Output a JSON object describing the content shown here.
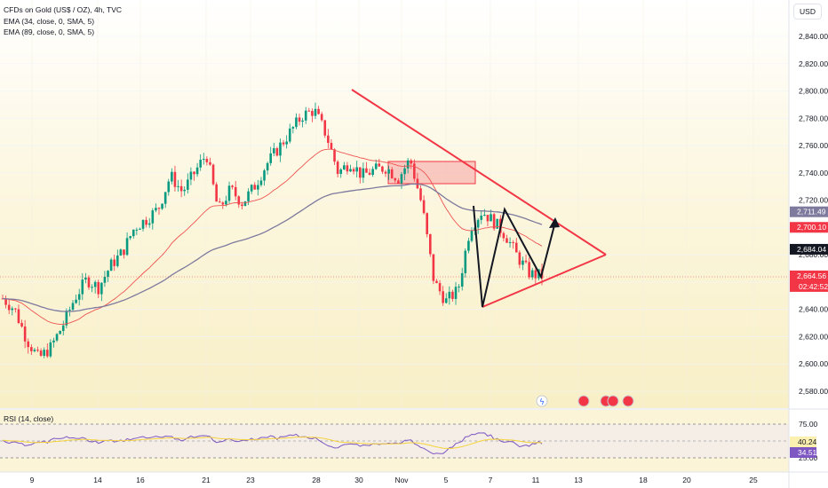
{
  "legend": {
    "symbol": "CFDs on Gold (US$ / OZ), 4h, TVC",
    "ema1": "EMA (34, close, 0, SMA, 5)",
    "ema2": "EMA (89, close, 0, SMA, 5)"
  },
  "currency_button": "USD",
  "rsi": {
    "label": "RSI (14, close)",
    "ticks": [
      "75.00",
      "25.00"
    ],
    "value_labels": [
      "40.24",
      "34.51"
    ]
  },
  "colors": {
    "up": "#089981",
    "down": "#f23645",
    "ema34": "#ef5350",
    "ema89": "#7e7a9e",
    "trend": "#f23645",
    "zone": "#f7a8a8",
    "rsi": "#7e57c2",
    "rsi_ma": "#f5d33b"
  },
  "chart_data": {
    "type": "candlestick",
    "y_ticks": [
      2580,
      2600,
      2620,
      2640,
      2660,
      2680,
      2700,
      2720,
      2740,
      2760,
      2780,
      2800,
      2820,
      2840
    ],
    "y_tick_labels": [
      "2,580.00",
      "2,600.00",
      "2,620.00",
      "2,640.00",
      "2,660.00",
      "2,680.00",
      "2,700.00",
      "2,720.00",
      "2,740.00",
      "2,760.00",
      "2,780.00",
      "2,800.00",
      "2,820.00",
      "2,840.00"
    ],
    "x_tick_labels": [
      "9",
      "14",
      "16",
      "21",
      "23",
      "28",
      "30",
      "Nov",
      "5",
      "7",
      "11",
      "13",
      "18",
      "20",
      "25"
    ],
    "ylim": [
      2564,
      2858
    ],
    "price_labels": [
      {
        "text": "2,711.49",
        "value": 2711.49,
        "color": "#7e7a9e"
      },
      {
        "text": "2,700.10",
        "value": 2700.1,
        "color": "#f23645"
      },
      {
        "text": "2,684.04",
        "value": 2684.04,
        "color": "#131722"
      },
      {
        "text": "2,664.56",
        "value": 2664.56,
        "color": "#f23645"
      }
    ],
    "countdown": "02:42:52",
    "close_path": [
      2648,
      2640,
      2618,
      2604,
      2612,
      2628,
      2648,
      2662,
      2656,
      2672,
      2682,
      2700,
      2706,
      2714,
      2738,
      2726,
      2740,
      2754,
      2712,
      2728,
      2718,
      2730,
      2746,
      2758,
      2770,
      2782,
      2786,
      2768,
      2740,
      2748,
      2738,
      2742,
      2744,
      2736,
      2750,
      2716,
      2660,
      2646,
      2654,
      2700,
      2712,
      2704,
      2694,
      2678,
      2666,
      2664.56
    ]
  }
}
